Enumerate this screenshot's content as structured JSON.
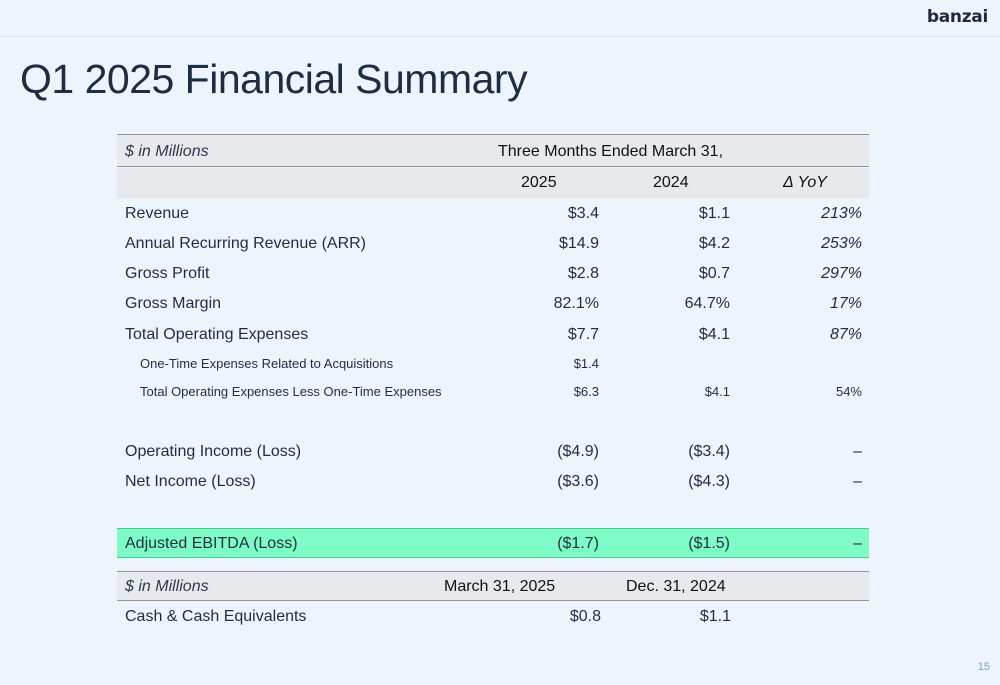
{
  "brand": "banzai",
  "page_title": "Q1 2025 Financial Summary",
  "page_number": "15",
  "summary_table": {
    "units_label": "$ in Millions",
    "period_header": "Three Months Ended March 31,",
    "columns": [
      "2025",
      "2024",
      "Δ YoY"
    ],
    "rows": [
      {
        "label": "Revenue",
        "v2025": "$3.4",
        "v2024": "$1.1",
        "yoy": "213%"
      },
      {
        "label": "Annual Recurring Revenue (ARR)",
        "v2025": "$14.9",
        "v2024": "$4.2",
        "yoy": "253%"
      },
      {
        "label": "Gross Profit",
        "v2025": "$2.8",
        "v2024": "$0.7",
        "yoy": "297%"
      },
      {
        "label": "Gross Margin",
        "v2025": "82.1%",
        "v2024": "64.7%",
        "yoy": "17%"
      },
      {
        "label": "Total Operating Expenses",
        "v2025": "$7.7",
        "v2024": "$4.1",
        "yoy": "87%"
      },
      {
        "label": "One-Time Expenses Related to Acquisitions",
        "v2025": "$1.4",
        "v2024": "",
        "yoy": ""
      },
      {
        "label": "Total Operating Expenses Less One-Time Expenses",
        "v2025": "$6.3",
        "v2024": "$4.1",
        "yoy": "54%"
      },
      {
        "label": "Operating Income (Loss)",
        "v2025": "($4.9)",
        "v2024": "($3.4)",
        "yoy": "–"
      },
      {
        "label": "Net Income (Loss)",
        "v2025": "($3.6)",
        "v2024": "($4.3)",
        "yoy": "–"
      }
    ],
    "highlight_row": {
      "label": "Adjusted EBITDA (Loss)",
      "v2025": "($1.7)",
      "v2024": "($1.5)",
      "yoy": "–",
      "color": "#7dfcc6"
    }
  },
  "cash_table": {
    "units_label": "$ in Millions",
    "columns": [
      "March 31, 2025",
      "Dec. 31, 2024"
    ],
    "row": {
      "label": "Cash & Cash Equivalents",
      "v1": "$0.8",
      "v2": "$1.1"
    }
  }
}
